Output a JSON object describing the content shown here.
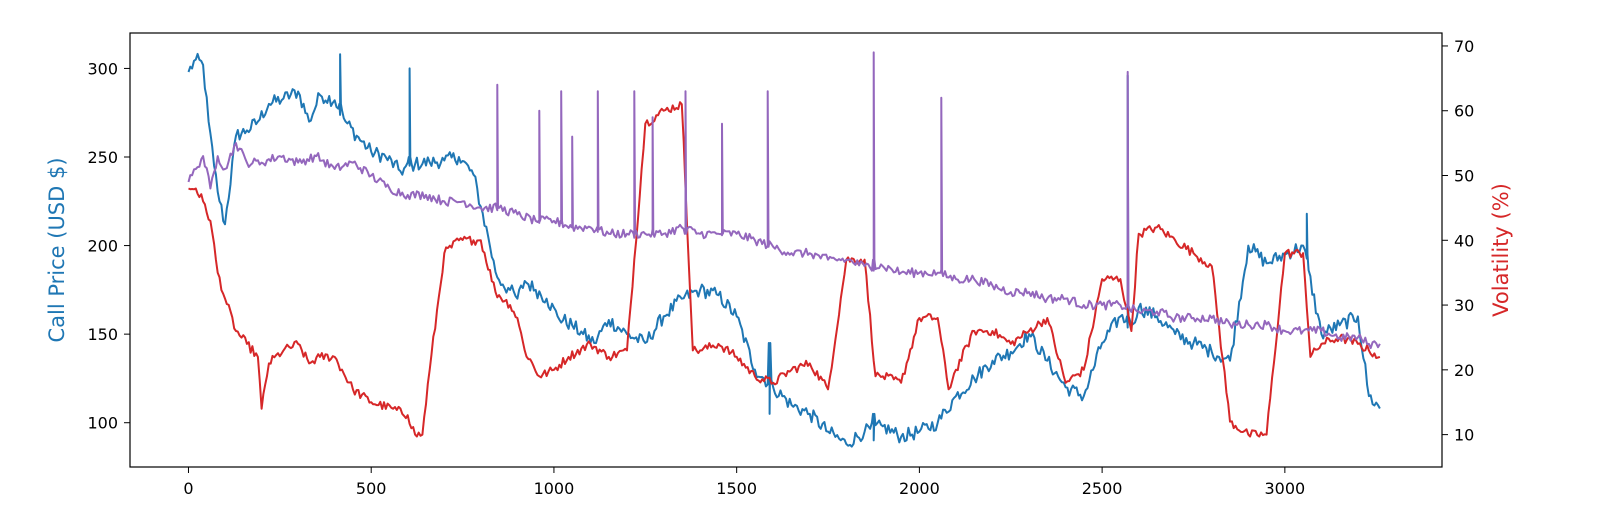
{
  "chart_data": {
    "type": "line",
    "title": "",
    "xlabel": "",
    "ylabel_left": "Call Price (USD $)",
    "ylabel_right": "Volatility (%)",
    "xlim": [
      -160,
      3430
    ],
    "ylim_left": [
      75,
      320
    ],
    "ylim_right": [
      5,
      72
    ],
    "grid": false,
    "x_ticks": [
      0,
      500,
      1000,
      1500,
      2000,
      2500,
      3000
    ],
    "y_ticks_left": [
      100,
      150,
      200,
      250,
      300
    ],
    "y_ticks_right": [
      10,
      20,
      30,
      40,
      50,
      60,
      70
    ],
    "colors": {
      "call_price": "#1f77b4",
      "volatility_red": "#d62728",
      "volatility_purple": "#9467bd"
    },
    "series": [
      {
        "axis": "left",
        "color": "#1f77b4",
        "x": [
          0,
          20,
          40,
          55,
          70,
          85,
          100,
          130,
          160,
          190,
          220,
          260,
          300,
          330,
          360,
          400,
          430,
          460,
          500,
          540,
          580,
          620,
          660,
          700,
          740,
          780,
          800,
          820,
          840,
          860,
          880,
          900,
          920,
          950,
          980,
          1010,
          1050,
          1080,
          1110,
          1150,
          1200,
          1250,
          1300,
          1350,
          1400,
          1450,
          1500,
          1550,
          1600,
          1650,
          1700,
          1750,
          1800,
          1850,
          1900,
          1950,
          2000,
          2050,
          2100,
          2150,
          2200,
          2250,
          2300,
          2350,
          2400,
          2450,
          2500,
          2550,
          2580,
          2600,
          2650,
          2700,
          2750,
          2800,
          2850,
          2900,
          2950,
          3000,
          3050,
          3100,
          3150,
          3200,
          3230,
          3260
        ],
        "values": [
          298,
          305,
          302,
          270,
          245,
          225,
          212,
          262,
          265,
          270,
          280,
          283,
          287,
          270,
          285,
          282,
          270,
          262,
          253,
          250,
          242,
          246,
          247,
          248,
          250,
          240,
          222,
          205,
          185,
          178,
          175,
          170,
          180,
          175,
          170,
          160,
          155,
          150,
          145,
          158,
          150,
          145,
          160,
          170,
          175,
          172,
          160,
          130,
          120,
          110,
          105,
          95,
          88,
          95,
          98,
          92,
          95,
          100,
          115,
          125,
          135,
          140,
          150,
          135,
          120,
          115,
          145,
          160,
          155,
          165,
          160,
          150,
          145,
          140,
          135,
          200,
          190,
          195,
          200,
          150,
          155,
          160,
          115,
          108
        ]
      },
      {
        "axis": "right",
        "color": "#d62728",
        "x": [
          0,
          20,
          40,
          60,
          80,
          100,
          130,
          160,
          190,
          200,
          220,
          260,
          300,
          330,
          360,
          400,
          450,
          500,
          560,
          600,
          620,
          640,
          660,
          700,
          740,
          780,
          800,
          840,
          880,
          900,
          920,
          960,
          1000,
          1040,
          1100,
          1150,
          1200,
          1250,
          1300,
          1350,
          1380,
          1400,
          1450,
          1500,
          1550,
          1600,
          1650,
          1700,
          1750,
          1800,
          1850,
          1880,
          1900,
          1950,
          2000,
          2050,
          2080,
          2100,
          2150,
          2200,
          2250,
          2300,
          2350,
          2400,
          2450,
          2500,
          2550,
          2580,
          2600,
          2650,
          2700,
          2750,
          2800,
          2850,
          2900,
          2950,
          3000,
          3050,
          3070,
          3100,
          3150,
          3200,
          3230,
          3260
        ],
        "values": [
          48,
          48,
          46,
          43,
          35,
          31,
          26,
          24,
          22,
          14,
          21,
          23,
          24,
          21,
          22,
          22,
          17,
          15,
          14,
          13,
          10,
          10,
          20,
          38,
          40,
          40,
          40,
          32,
          30,
          28,
          23,
          19,
          20,
          22,
          24,
          22,
          23,
          58,
          60,
          61,
          23,
          23,
          24,
          22,
          19,
          18,
          20,
          21,
          17,
          37,
          37,
          19,
          19,
          18,
          28,
          28,
          17,
          20,
          26,
          26,
          24,
          26,
          28,
          18,
          20,
          34,
          34,
          26,
          41,
          42,
          40,
          38,
          36,
          12,
          10,
          10,
          38,
          38,
          22,
          24,
          25,
          24,
          23,
          22
        ]
      },
      {
        "axis": "right",
        "color": "#9467bd",
        "x": [
          0,
          20,
          40,
          60,
          80,
          100,
          130,
          160,
          200,
          250,
          300,
          350,
          400,
          450,
          500,
          550,
          600,
          650,
          700,
          750,
          800,
          850,
          900,
          950,
          1000,
          1050,
          1100,
          1150,
          1200,
          1250,
          1300,
          1350,
          1400,
          1450,
          1500,
          1550,
          1600,
          1650,
          1700,
          1750,
          1800,
          1850,
          1900,
          1950,
          2000,
          2050,
          2100,
          2150,
          2200,
          2250,
          2300,
          2350,
          2400,
          2450,
          2500,
          2550,
          2600,
          2650,
          2700,
          2750,
          2800,
          2850,
          2900,
          2950,
          3000,
          3050,
          3100,
          3150,
          3200,
          3230,
          3260
        ],
        "values": [
          49,
          51,
          53,
          48,
          53,
          51,
          55,
          52,
          52,
          53,
          52,
          53,
          51,
          52,
          50,
          48,
          47,
          47,
          46,
          46,
          45,
          45,
          44,
          43,
          43,
          42,
          42,
          41,
          41,
          41,
          41,
          42,
          41,
          41,
          41,
          40,
          39,
          38,
          38,
          37,
          37,
          36,
          36,
          35,
          35,
          35,
          34,
          34,
          33,
          32,
          32,
          31,
          31,
          30,
          30,
          30,
          29,
          29,
          28,
          28,
          28,
          27,
          27,
          27,
          26,
          26,
          26,
          25,
          25,
          24,
          24
        ]
      }
    ],
    "spikes": [
      {
        "series": 2,
        "x": 845,
        "peak": 64,
        "base": 45
      },
      {
        "series": 2,
        "x": 960,
        "peak": 60,
        "base": 43
      },
      {
        "series": 2,
        "x": 1020,
        "peak": 63,
        "base": 43
      },
      {
        "series": 2,
        "x": 1050,
        "peak": 56,
        "base": 42
      },
      {
        "series": 2,
        "x": 1120,
        "peak": 63,
        "base": 42
      },
      {
        "series": 2,
        "x": 1220,
        "peak": 63,
        "base": 41
      },
      {
        "series": 2,
        "x": 1270,
        "peak": 59,
        "base": 41
      },
      {
        "series": 2,
        "x": 1360,
        "peak": 63,
        "base": 41
      },
      {
        "series": 2,
        "x": 1460,
        "peak": 58,
        "base": 41
      },
      {
        "series": 2,
        "x": 1585,
        "peak": 63,
        "base": 39
      },
      {
        "series": 2,
        "x": 1875,
        "peak": 69,
        "base": 37
      },
      {
        "series": 2,
        "x": 2060,
        "peak": 62,
        "base": 35
      },
      {
        "series": 2,
        "x": 2570,
        "peak": 66,
        "base": 30
      },
      {
        "series": 0,
        "x": 415,
        "peak": 308,
        "base": 280
      },
      {
        "series": 0,
        "x": 605,
        "peak": 300,
        "base": 250
      },
      {
        "series": 0,
        "x": 1590,
        "peak": 105,
        "base": 145
      },
      {
        "series": 0,
        "x": 1875,
        "peak": 90,
        "base": 105
      },
      {
        "series": 0,
        "x": 2570,
        "peak": 296,
        "base": 160
      },
      {
        "series": 0,
        "x": 3060,
        "peak": 218,
        "base": 195
      }
    ]
  }
}
